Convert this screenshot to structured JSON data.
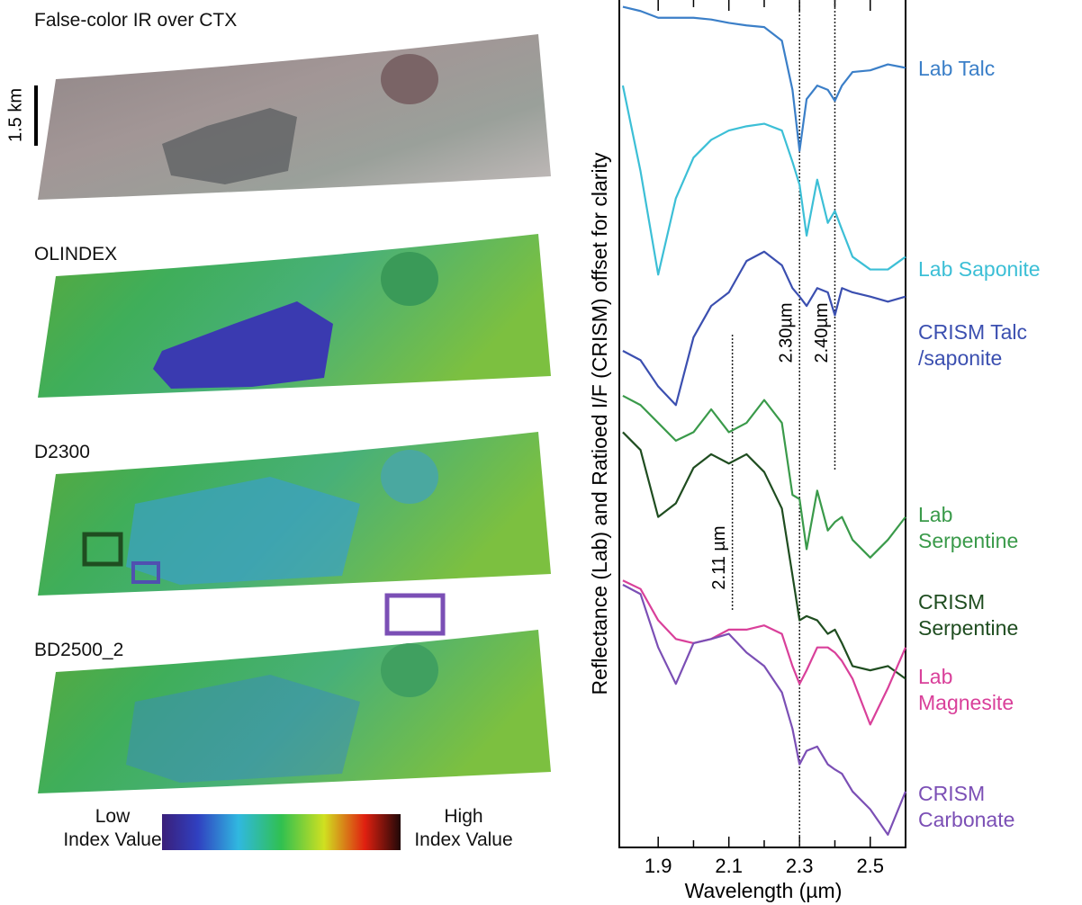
{
  "panels": [
    {
      "title": "False-color IR over CTX"
    },
    {
      "title": "OLINDEX"
    },
    {
      "title": "D2300"
    },
    {
      "title": "BD2500_2"
    }
  ],
  "scale_bar": "1.5 km",
  "colorbar": {
    "low": "Low\nIndex Value",
    "high": "High\nIndex Value"
  },
  "chart_data": {
    "type": "line",
    "xlabel": "Wavelength (µm)",
    "ylabel": "Reflectance (Lab) and Ratioed I/F (CRISM) offset for clarity",
    "x": [
      1.8,
      1.85,
      1.9,
      1.95,
      2.0,
      2.05,
      2.1,
      2.15,
      2.2,
      2.25,
      2.28,
      2.3,
      2.32,
      2.35,
      2.38,
      2.4,
      2.42,
      2.45,
      2.5,
      2.55,
      2.6
    ],
    "xlim": [
      1.79,
      2.6
    ],
    "xticks": [
      1.9,
      2.1,
      2.3,
      2.5
    ],
    "xminor_ticks": [
      2.0,
      2.2,
      2.4
    ],
    "ylim": [
      0,
      100
    ],
    "series": [
      {
        "name": "Lab Talc",
        "color": "#3b7fc8",
        "values": [
          99.2,
          98.7,
          97.9,
          97.9,
          97.9,
          97.7,
          97.3,
          97.0,
          96.8,
          95.2,
          89.4,
          82.2,
          88.3,
          89.9,
          89.4,
          88.1,
          89.9,
          91.5,
          91.7,
          92.4,
          92.0
        ]
      },
      {
        "name": "Lab Saponite",
        "color": "#3cbfd6",
        "values": [
          89.9,
          79.8,
          67.6,
          76.6,
          81.4,
          83.5,
          84.6,
          85.1,
          85.4,
          84.6,
          80.9,
          78.2,
          72.2,
          78.8,
          73.7,
          75.1,
          72.9,
          69.7,
          68.2,
          68.2,
          69.7
        ]
      },
      {
        "name": "CRISM Talc\n/saponite",
        "color": "#3b4fb0",
        "values": [
          58.6,
          57.5,
          54.4,
          52.2,
          60.2,
          63.9,
          65.5,
          69.2,
          70.3,
          68.7,
          66.0,
          65.0,
          63.9,
          66.0,
          65.5,
          62.8,
          66.0,
          65.5,
          65.0,
          64.4,
          65.0
        ]
      },
      {
        "name": "Lab\nSerpentine",
        "color": "#3a9a4a",
        "values": [
          53.3,
          52.2,
          50.1,
          48.0,
          49.0,
          51.7,
          49.0,
          50.1,
          52.8,
          50.1,
          41.6,
          41.1,
          35.2,
          42.1,
          37.4,
          38.4,
          39.0,
          36.3,
          34.2,
          36.3,
          39.0
        ]
      },
      {
        "name": "CRISM\nSerpentine",
        "color": "#1f4d20",
        "values": [
          49.0,
          46.9,
          39.0,
          40.6,
          44.8,
          46.4,
          45.3,
          46.4,
          44.3,
          40.0,
          32.1,
          26.8,
          27.3,
          26.8,
          25.2,
          25.7,
          24.1,
          21.4,
          20.9,
          21.4,
          19.9
        ]
      },
      {
        "name": "Lab\nMagnesite",
        "color": "#d9409a",
        "values": [
          31.5,
          30.5,
          26.8,
          24.6,
          24.1,
          24.6,
          25.7,
          25.7,
          26.2,
          25.2,
          21.4,
          19.3,
          20.9,
          23.6,
          23.6,
          23.0,
          22.0,
          19.9,
          14.5,
          18.8,
          23.6
        ]
      },
      {
        "name": "CRISM\nCarbonate",
        "color": "#7b4fb5",
        "values": [
          31.0,
          29.9,
          23.6,
          19.3,
          24.1,
          24.6,
          25.2,
          23.0,
          21.4,
          18.3,
          14.0,
          9.8,
          11.4,
          11.9,
          9.8,
          9.2,
          8.7,
          6.6,
          4.5,
          1.5,
          6.6
        ]
      }
    ],
    "annotations": [
      {
        "text": "2.30µm",
        "x": 2.3
      },
      {
        "text": "2.40µm",
        "x": 2.4
      },
      {
        "text": "2.11 µm",
        "x": 2.11
      }
    ]
  }
}
